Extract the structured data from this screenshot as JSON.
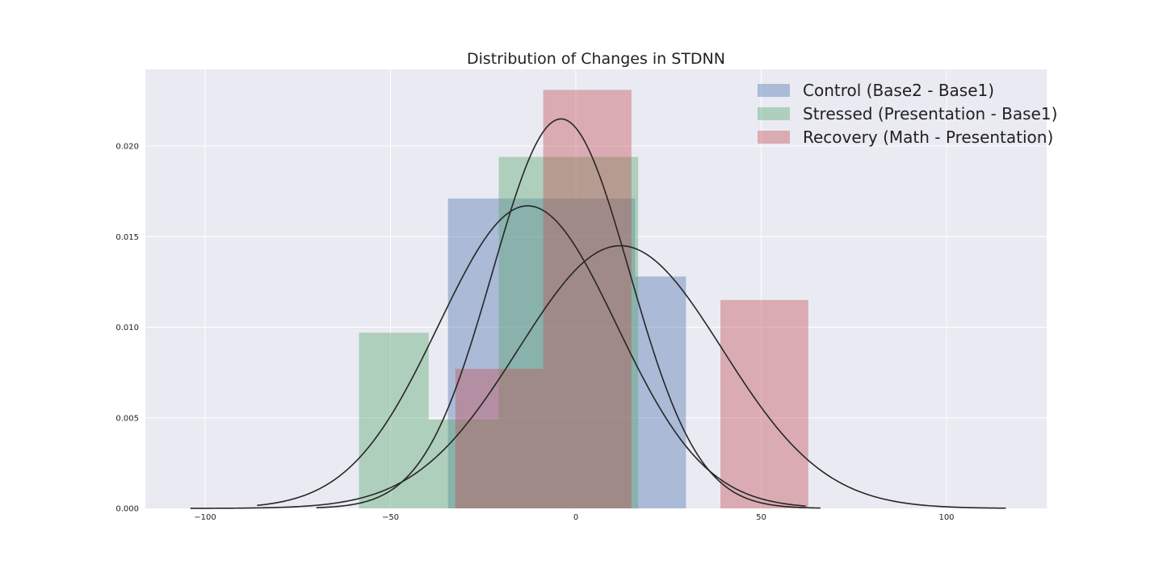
{
  "chart_data": {
    "type": "bar",
    "title": "Distribution of Changes in STDNN",
    "xlabel": "",
    "ylabel": "",
    "xlim": [
      -105,
      118
    ],
    "ylim": [
      0,
      0.024
    ],
    "x_ticks": [
      -100,
      -50,
      0,
      50,
      100
    ],
    "x_tick_labels": [
      "−100",
      "−50",
      "0",
      "50",
      "100"
    ],
    "y_ticks": [
      0.0,
      0.005,
      0.01,
      0.015,
      0.02
    ],
    "y_tick_labels": [
      "0.000",
      "0.005",
      "0.010",
      "0.015",
      "0.020"
    ],
    "grid": true,
    "legend_position": "top-right",
    "series": [
      {
        "name": "Control (Base2 - Base1)",
        "color": "#4c72b0",
        "bins": [
          {
            "x0": -34.5,
            "x1": -8.0,
            "height": 0.0171
          },
          {
            "x0": -8.0,
            "x1": 16.0,
            "height": 0.0171
          },
          {
            "x0": 16.0,
            "x1": 29.7,
            "height": 0.0128
          }
        ],
        "kde": {
          "mean": -13.0,
          "sd": 24.0,
          "peak": 0.0167,
          "x_start": -86.0,
          "x_end": 62.0
        }
      },
      {
        "name": "Stressed (Presentation - Base1)",
        "color": "#55a868",
        "bins": [
          {
            "x0": -58.5,
            "x1": -39.7,
            "height": 0.0097
          },
          {
            "x0": -39.7,
            "x1": -20.8,
            "height": 0.0049
          },
          {
            "x0": -20.8,
            "x1": -2.0,
            "height": 0.0194
          },
          {
            "x0": -2.0,
            "x1": 16.8,
            "height": 0.0194
          }
        ],
        "kde": {
          "mean": 12.0,
          "sd": 27.5,
          "peak": 0.0145,
          "x_start": -104.0,
          "x_end": 116.0
        }
      },
      {
        "name": "Recovery (Math - Presentation)",
        "color": "#c44e52",
        "bins": [
          {
            "x0": -32.5,
            "x1": -8.8,
            "height": 0.0077
          },
          {
            "x0": -8.8,
            "x1": 15.0,
            "height": 0.0231
          },
          {
            "x0": 39.0,
            "x1": 62.7,
            "height": 0.0115
          }
        ],
        "kde": {
          "mean": -4.0,
          "sd": 18.5,
          "peak": 0.0215,
          "x_start": -70.0,
          "x_end": 66.0
        }
      }
    ]
  }
}
